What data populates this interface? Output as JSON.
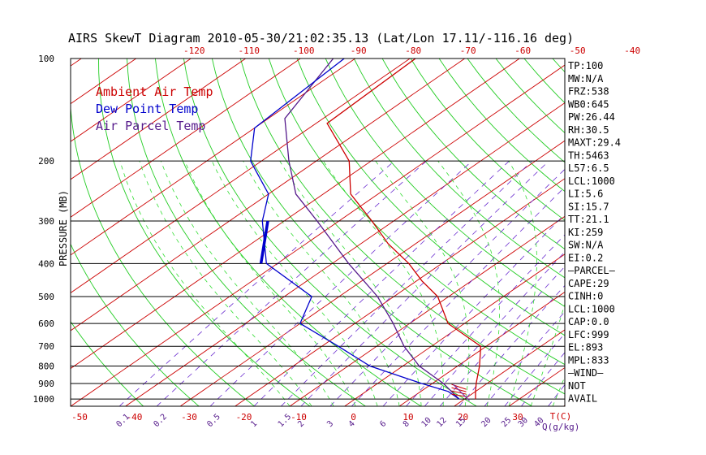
{
  "chart_data": {
    "type": "line",
    "title": "AIRS SkewT Diagram 2010-05-30/21:02:35.13 (Lat/Lon 17.11/-116.16 deg)",
    "ylabel": "PRESSURE (MB)",
    "y_scale": "log",
    "ylim": [
      1050,
      100
    ],
    "xlim_bottom": [
      -50,
      40
    ],
    "pressure_ticks": [
      100,
      200,
      300,
      400,
      500,
      600,
      700,
      800,
      900,
      1000
    ],
    "top_temp_ticks": [
      -120,
      -110,
      -100,
      -90,
      -80,
      -70,
      -60,
      -50,
      -40
    ],
    "bottom_temp_ticks": [
      -50,
      -40,
      -30,
      -20,
      -10,
      0,
      10,
      20,
      30
    ],
    "bottom_temp_unit": "T(C)",
    "mixing_ratio_ticks": [
      "0.1",
      "0.2",
      "0.5",
      "1",
      "1.5",
      "2",
      "3",
      "4",
      "6",
      "8",
      "10",
      "12",
      "15",
      "20",
      "25",
      "30",
      "40"
    ],
    "mixing_ratio_unit": "Q(g/kg)",
    "legend": [
      {
        "label": "Ambient Air Temp",
        "color": "#cc0000"
      },
      {
        "label": "Dew Point Temp",
        "color": "#0000cc"
      },
      {
        "label": "Air Parcel Temp",
        "color": "#551a8b"
      }
    ],
    "series": [
      {
        "name": "Ambient Air Temp",
        "color": "#cc0000",
        "points": [
          [
            100,
            -79
          ],
          [
            155,
            -78
          ],
          [
            200,
            -64
          ],
          [
            250,
            -55
          ],
          [
            300,
            -44
          ],
          [
            350,
            -35
          ],
          [
            400,
            -26
          ],
          [
            450,
            -19
          ],
          [
            500,
            -12
          ],
          [
            600,
            -3
          ],
          [
            700,
            9
          ],
          [
            800,
            14
          ],
          [
            900,
            18
          ],
          [
            950,
            20
          ],
          [
            1000,
            22
          ]
        ]
      },
      {
        "name": "Dew Point Temp",
        "color": "#0000cc",
        "points": [
          [
            100,
            -92
          ],
          [
            160,
            -90
          ],
          [
            200,
            -82
          ],
          [
            250,
            -70
          ],
          [
            300,
            -64
          ],
          [
            400,
            -52
          ],
          [
            500,
            -35
          ],
          [
            600,
            -30
          ],
          [
            700,
            -17
          ],
          [
            800,
            -6
          ],
          [
            900,
            8
          ],
          [
            950,
            15
          ],
          [
            1000,
            19
          ]
        ]
      },
      {
        "name": "Air Parcel Temp",
        "color": "#551a8b",
        "points": [
          [
            100,
            -94
          ],
          [
            150,
            -87
          ],
          [
            200,
            -75
          ],
          [
            250,
            -65
          ],
          [
            300,
            -54
          ],
          [
            400,
            -37
          ],
          [
            500,
            -23
          ],
          [
            600,
            -13
          ],
          [
            700,
            -5
          ],
          [
            800,
            3
          ],
          [
            900,
            12
          ],
          [
            1000,
            19
          ]
        ]
      }
    ],
    "thick_segment": {
      "color": "#0000cc",
      "points": [
        [
          300,
          -63
        ],
        [
          400,
          -53
        ]
      ]
    },
    "indices": [
      "TP:100",
      "MW:N/A",
      "FRZ:538",
      "WB0:645",
      "PW:26.44",
      "RH:30.5",
      "MAXT:29.4",
      "TH:5463",
      "L57:6.5",
      "LCL:1000",
      "LI:5.6",
      "SI:15.7",
      "TT:21.1",
      "KI:259",
      "SW:N/A",
      "EI:0.2",
      "—PARCEL—",
      "CAPE:29",
      "CINH:0",
      "LCL:1000",
      "CAP:0.0",
      "LFC:999",
      "EL:893",
      "MPL:833",
      "—WIND—",
      "NOT",
      "AVAIL"
    ]
  }
}
